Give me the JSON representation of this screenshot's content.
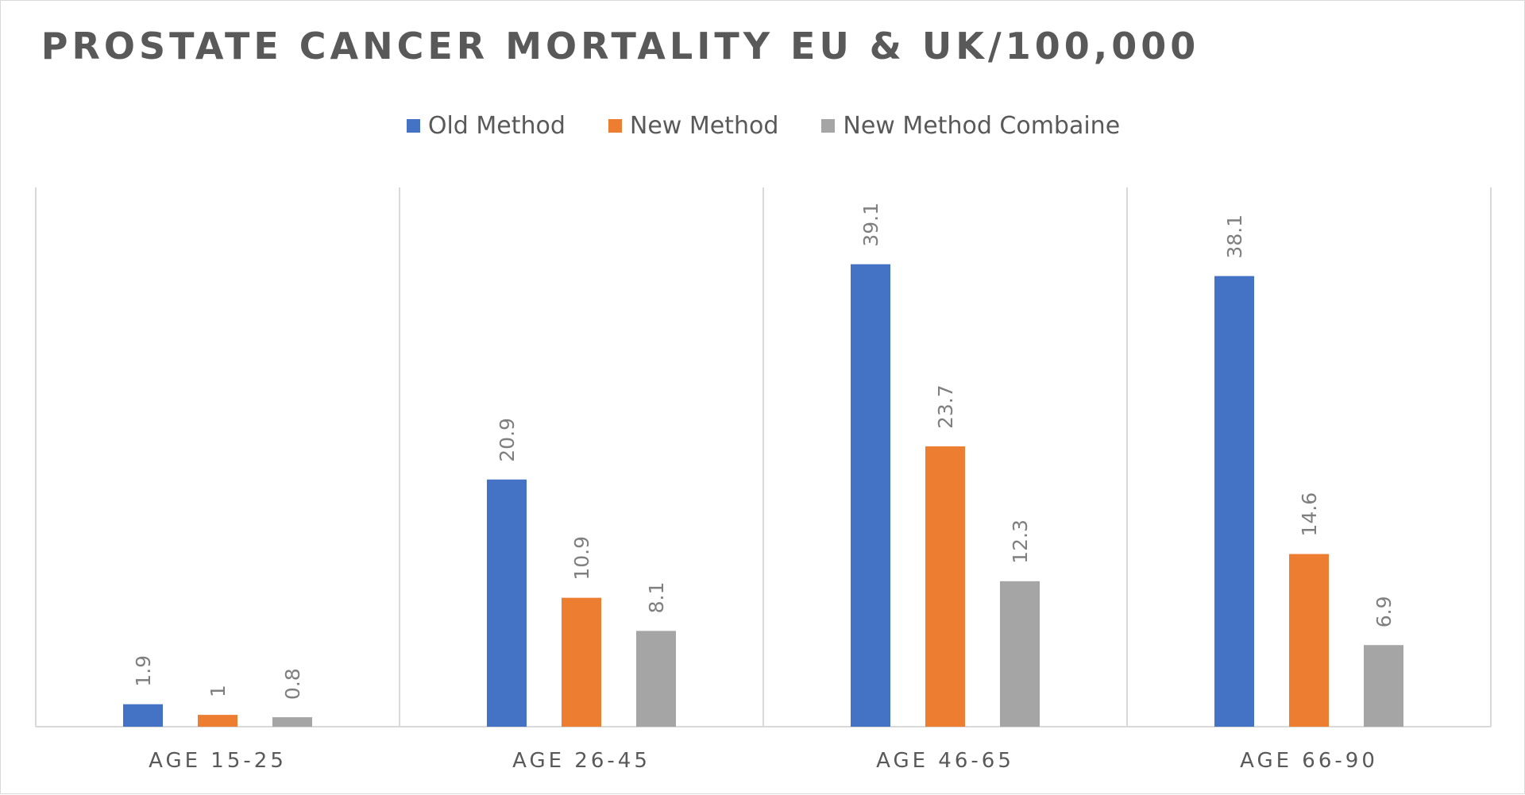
{
  "chart_data": {
    "type": "bar",
    "title": "PROSTATE  CANCER MORTALITY EU & UK/100,000",
    "categories": [
      "AGE 15-25",
      "AGE 26-45",
      "AGE 46-65",
      "AGE 66-90"
    ],
    "series": [
      {
        "name": "Old Method",
        "color": "#4472c4",
        "values": [
          1.9,
          20.9,
          39.1,
          38.1
        ],
        "labels": [
          "1.9",
          "20.9",
          "39.1",
          "38.1"
        ]
      },
      {
        "name": "New Method",
        "color": "#ed7d31",
        "values": [
          1,
          10.9,
          23.7,
          14.6
        ],
        "labels": [
          "1",
          "10.9",
          "23.7",
          "14.6"
        ]
      },
      {
        "name": "New Method Combaine",
        "color": "#a5a5a5",
        "values": [
          0.8,
          8.1,
          12.3,
          6.9
        ],
        "labels": [
          "0.8",
          "8.1",
          "12.3",
          "6.9"
        ]
      }
    ],
    "ylim": [
      0,
      45
    ],
    "grid": false,
    "legend_position": "top"
  }
}
